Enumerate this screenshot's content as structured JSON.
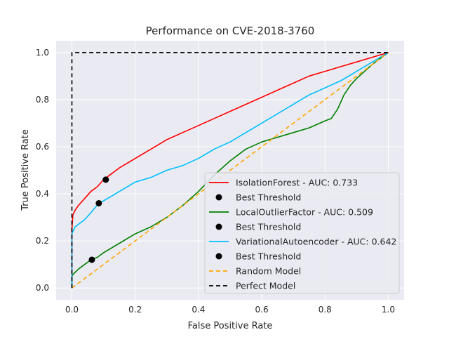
{
  "chart_data": {
    "type": "line",
    "title": "Performance on CVE-2018-3760",
    "xlabel": "False Positive Rate",
    "ylabel": "True Positive Rate",
    "xlim": [
      -0.05,
      1.05
    ],
    "ylim": [
      -0.05,
      1.05
    ],
    "xticks": [
      "0.0",
      "0.2",
      "0.4",
      "0.6",
      "0.8",
      "1.0"
    ],
    "yticks": [
      "0.0",
      "0.2",
      "0.4",
      "0.6",
      "0.8",
      "1.0"
    ],
    "grid": true,
    "legend_position": "lower-right",
    "series": [
      {
        "name": "IsolationForest - AUC: 0.733",
        "color": "#ff0000",
        "style": "solid",
        "x": [
          0,
          0,
          0.003,
          0.01,
          0.02,
          0.04,
          0.06,
          0.08,
          0.1,
          0.12,
          0.15,
          0.2,
          0.25,
          0.3,
          0.35,
          0.4,
          0.45,
          0.5,
          0.55,
          0.6,
          0.65,
          0.7,
          0.75,
          0.8,
          0.85,
          0.9,
          0.95,
          1.0
        ],
        "y": [
          0,
          0.25,
          0.31,
          0.33,
          0.35,
          0.38,
          0.41,
          0.43,
          0.46,
          0.48,
          0.51,
          0.55,
          0.59,
          0.63,
          0.66,
          0.69,
          0.72,
          0.75,
          0.78,
          0.81,
          0.84,
          0.87,
          0.9,
          0.92,
          0.94,
          0.96,
          0.98,
          1.0
        ]
      },
      {
        "name": "LocalOutlierFactor - AUC: 0.509",
        "color": "#008000",
        "style": "solid",
        "x": [
          0,
          0,
          0.005,
          0.02,
          0.04,
          0.06,
          0.08,
          0.1,
          0.15,
          0.2,
          0.25,
          0.3,
          0.35,
          0.4,
          0.45,
          0.5,
          0.55,
          0.6,
          0.65,
          0.7,
          0.75,
          0.8,
          0.82,
          0.84,
          0.86,
          0.88,
          0.9,
          0.95,
          1.0
        ],
        "y": [
          0,
          0.05,
          0.06,
          0.08,
          0.1,
          0.12,
          0.13,
          0.15,
          0.19,
          0.23,
          0.26,
          0.3,
          0.35,
          0.41,
          0.48,
          0.54,
          0.59,
          0.62,
          0.64,
          0.66,
          0.68,
          0.71,
          0.72,
          0.76,
          0.82,
          0.86,
          0.89,
          0.95,
          1.0
        ]
      },
      {
        "name": "VariationalAutoencoder - AUC: 0.642",
        "color": "#00bfff",
        "style": "solid",
        "x": [
          0,
          0,
          0.003,
          0.01,
          0.02,
          0.04,
          0.06,
          0.085,
          0.1,
          0.15,
          0.2,
          0.25,
          0.3,
          0.35,
          0.4,
          0.45,
          0.5,
          0.55,
          0.6,
          0.65,
          0.7,
          0.75,
          0.8,
          0.85,
          0.9,
          0.95,
          1.0
        ],
        "y": [
          0,
          0.23,
          0.24,
          0.26,
          0.27,
          0.29,
          0.32,
          0.36,
          0.37,
          0.41,
          0.45,
          0.47,
          0.5,
          0.52,
          0.55,
          0.59,
          0.62,
          0.66,
          0.7,
          0.74,
          0.78,
          0.82,
          0.85,
          0.88,
          0.92,
          0.96,
          1.0
        ]
      },
      {
        "name": "Random Model",
        "color": "#ffa500",
        "style": "dashed",
        "x": [
          0,
          1
        ],
        "y": [
          0,
          1
        ]
      },
      {
        "name": "Perfect Model",
        "color": "#000000",
        "style": "dashed",
        "x": [
          0,
          0,
          1
        ],
        "y": [
          0,
          1,
          1
        ]
      }
    ],
    "best_thresholds": [
      {
        "name": "Best Threshold",
        "x": 0.107,
        "y": 0.46,
        "color": "#000000"
      },
      {
        "name": "Best Threshold",
        "x": 0.063,
        "y": 0.12,
        "color": "#000000"
      },
      {
        "name": "Best Threshold",
        "x": 0.085,
        "y": 0.36,
        "color": "#000000"
      }
    ],
    "legend": [
      {
        "kind": "line",
        "series": 0,
        "label": "IsolationForest - AUC: 0.733"
      },
      {
        "kind": "marker",
        "label": "Best Threshold"
      },
      {
        "kind": "line",
        "series": 1,
        "label": "LocalOutlierFactor - AUC: 0.509"
      },
      {
        "kind": "marker",
        "label": "Best Threshold"
      },
      {
        "kind": "line",
        "series": 2,
        "label": "VariationalAutoencoder - AUC: 0.642"
      },
      {
        "kind": "marker",
        "label": "Best Threshold"
      },
      {
        "kind": "line",
        "series": 3,
        "label": "Random Model"
      },
      {
        "kind": "line",
        "series": 4,
        "label": "Perfect Model"
      }
    ],
    "colors": {
      "plot_background": "#eaeaf2",
      "grid": "#ffffff",
      "text": "#262626"
    }
  }
}
